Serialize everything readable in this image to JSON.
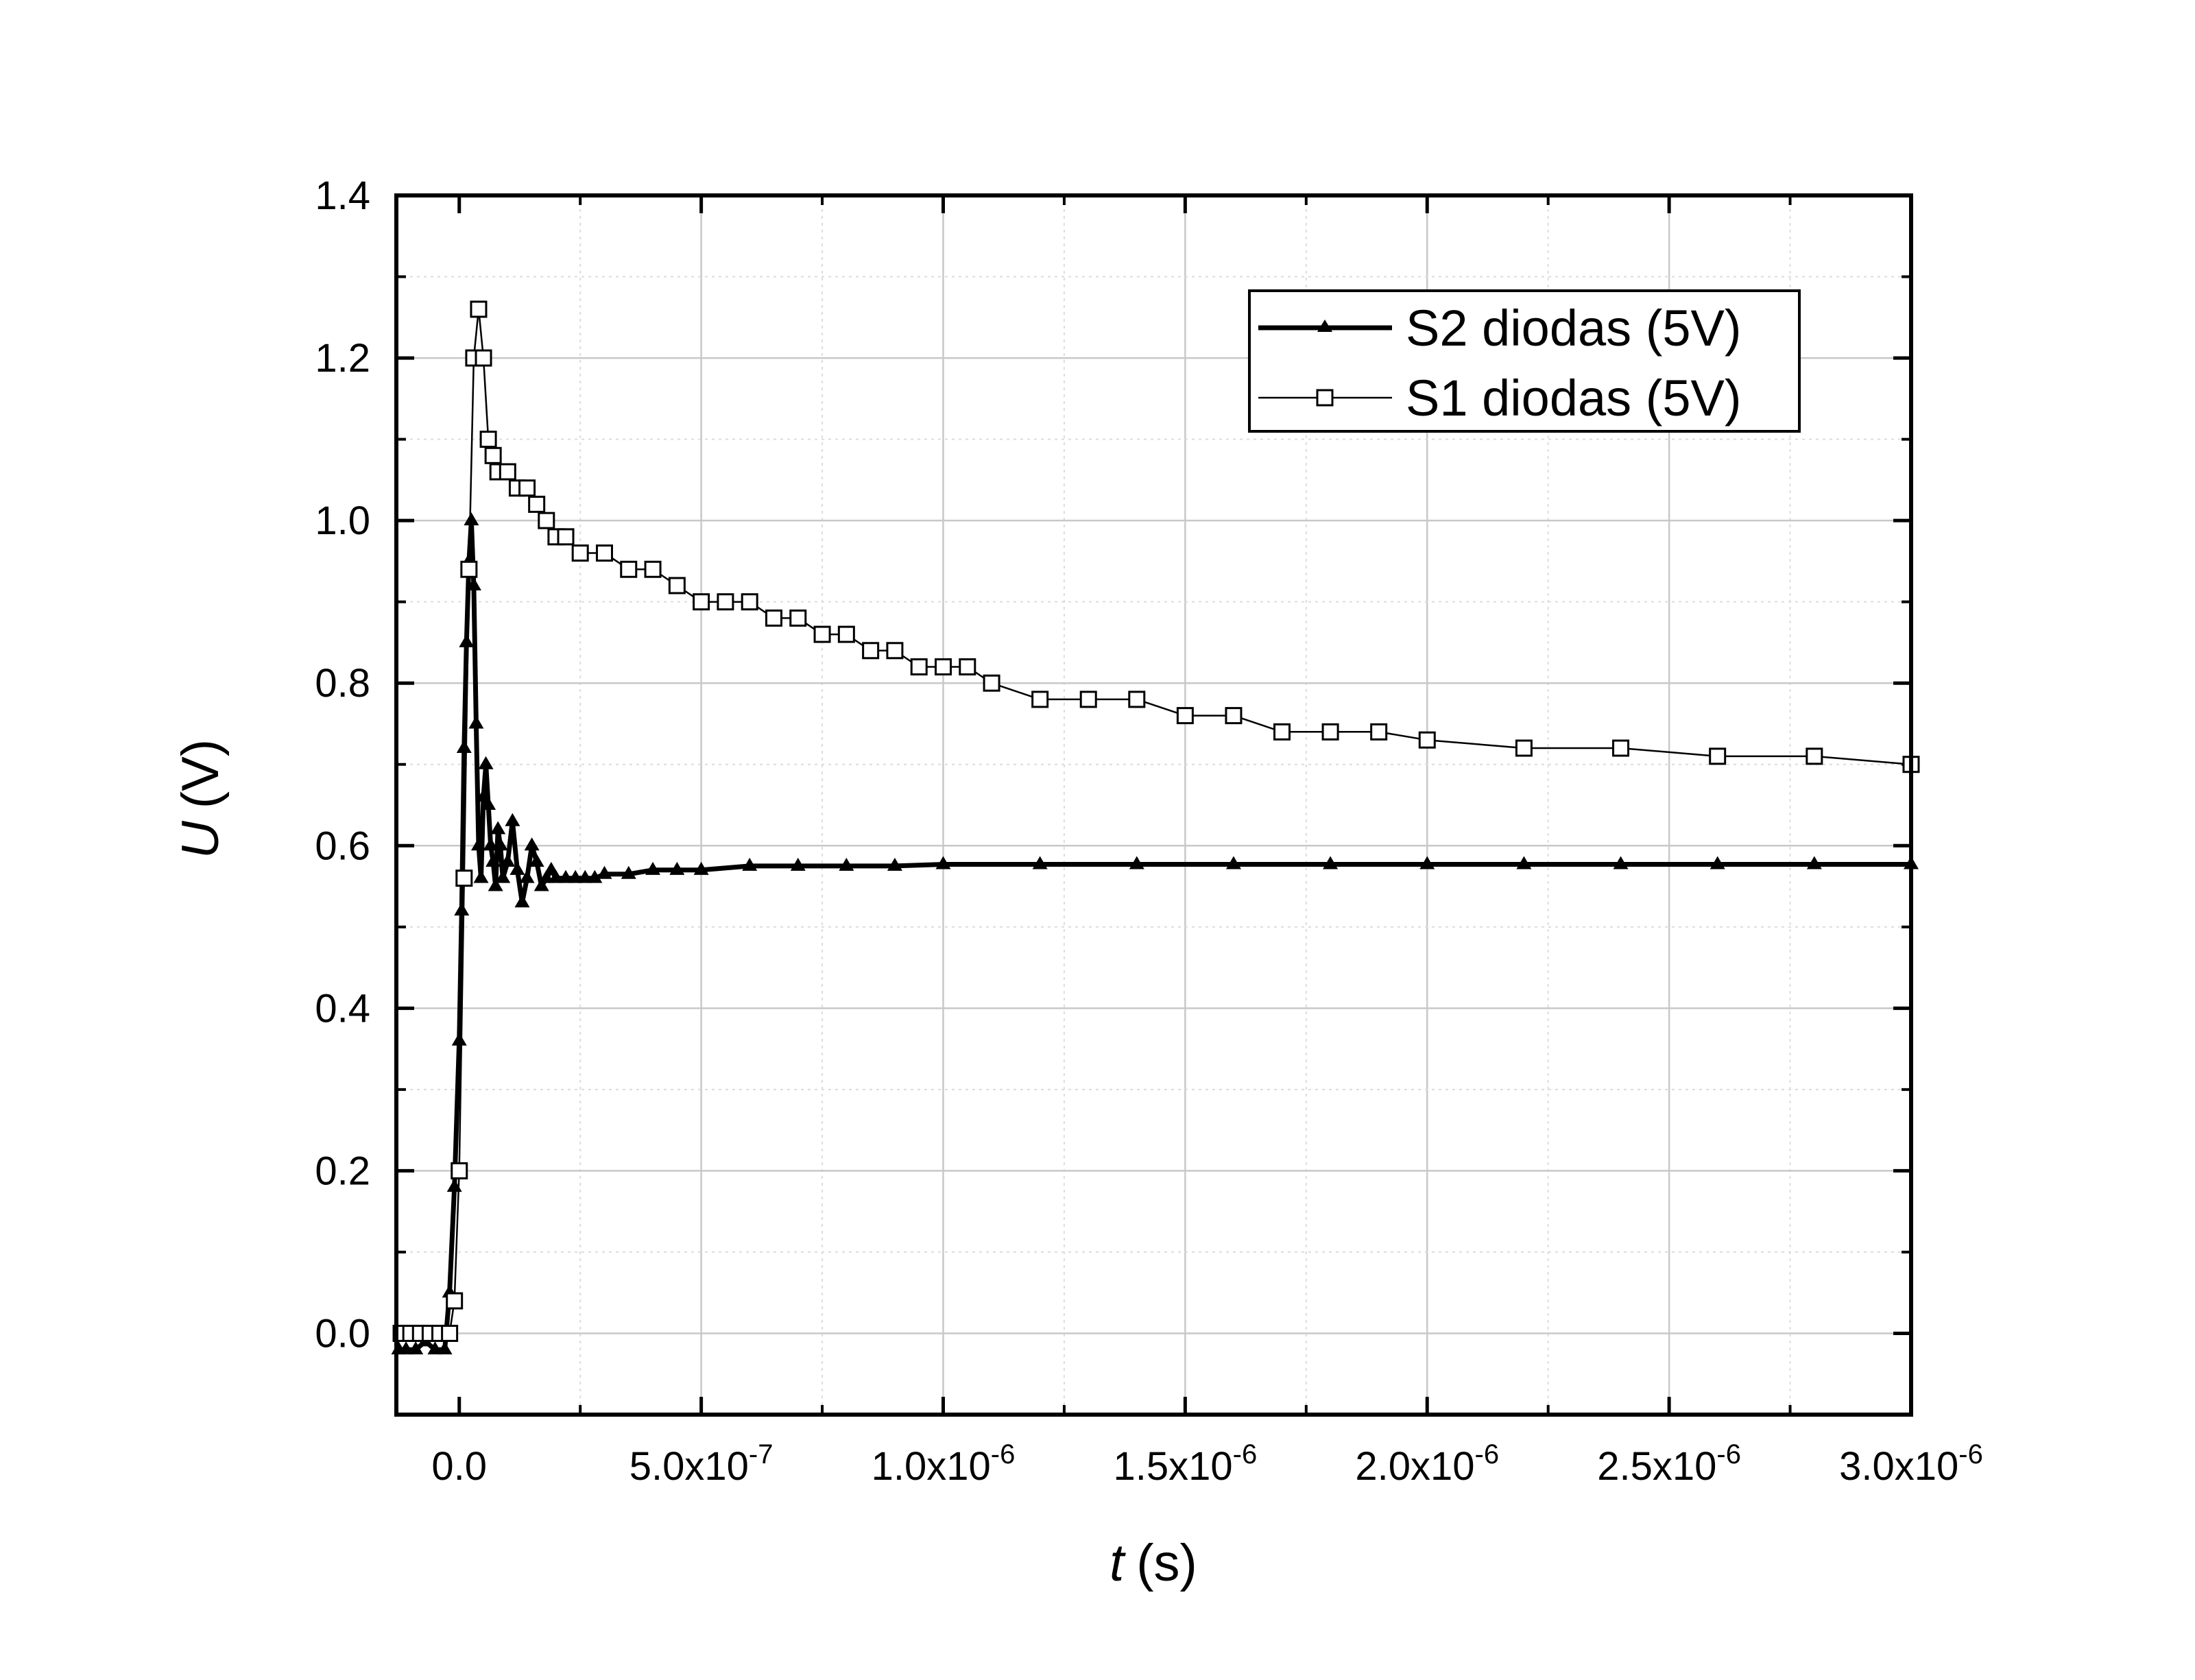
{
  "chart_data": {
    "type": "line",
    "title": "",
    "xlabel": {
      "symbol": "t",
      "unit": "(s)"
    },
    "ylabel": {
      "symbol": "U",
      "unit": "(V)"
    },
    "xlim": [
      -1.3e-07,
      3e-06
    ],
    "ylim": [
      -0.1,
      1.4
    ],
    "x_major_ticks": [
      0,
      5e-07,
      1e-06,
      1.5e-06,
      2e-06,
      2.5e-06,
      3e-06
    ],
    "x_tick_labels": [
      {
        "mantissa": "0.0",
        "exp": ""
      },
      {
        "mantissa": "5.0x10",
        "exp": "-7"
      },
      {
        "mantissa": "1.0x10",
        "exp": "-6"
      },
      {
        "mantissa": "1.5x10",
        "exp": "-6"
      },
      {
        "mantissa": "2.0x10",
        "exp": "-6"
      },
      {
        "mantissa": "2.5x10",
        "exp": "-6"
      },
      {
        "mantissa": "3.0x10",
        "exp": "-6"
      }
    ],
    "y_major_ticks": [
      0,
      0.2,
      0.4,
      0.6,
      0.8,
      1.0,
      1.2,
      1.4
    ],
    "y_tick_labels": [
      "0.0",
      "0.2",
      "0.4",
      "0.6",
      "0.8",
      "1.0",
      "1.2",
      "1.4"
    ],
    "grid": true,
    "legend_position": "top-right",
    "series": [
      {
        "name": "S2 diodas (5V)",
        "marker": "triangle-filled",
        "line": "thick",
        "x": [
          -1.25e-07,
          -1.1e-07,
          -9e-08,
          -7e-08,
          -5e-08,
          -3e-08,
          -2e-08,
          -1e-08,
          0,
          5e-09,
          1e-08,
          1.5e-08,
          2e-08,
          2.5e-08,
          3e-08,
          3.5e-08,
          4e-08,
          4.5e-08,
          5e-08,
          5.5e-08,
          6e-08,
          6.5e-08,
          7e-08,
          7.5e-08,
          8e-08,
          8.5e-08,
          9e-08,
          1e-07,
          1.1e-07,
          1.2e-07,
          1.3e-07,
          1.4e-07,
          1.5e-07,
          1.6e-07,
          1.7e-07,
          1.8e-07,
          1.9e-07,
          2e-07,
          2.2e-07,
          2.4e-07,
          2.6e-07,
          2.8e-07,
          3e-07,
          3.5e-07,
          4e-07,
          4.5e-07,
          5e-07,
          6e-07,
          7e-07,
          8e-07,
          9e-07,
          1e-06,
          1.2e-06,
          1.4e-06,
          1.6e-06,
          1.8e-06,
          2e-06,
          2.2e-06,
          2.4e-06,
          2.6e-06,
          2.8e-06,
          3e-06
        ],
        "y": [
          -0.02,
          -0.02,
          -0.02,
          -0.01,
          -0.02,
          -0.02,
          0.05,
          0.18,
          0.36,
          0.52,
          0.72,
          0.85,
          0.95,
          1.0,
          0.92,
          0.75,
          0.6,
          0.56,
          0.66,
          0.7,
          0.65,
          0.6,
          0.58,
          0.55,
          0.62,
          0.6,
          0.56,
          0.58,
          0.63,
          0.57,
          0.53,
          0.56,
          0.6,
          0.58,
          0.55,
          0.56,
          0.57,
          0.56,
          0.56,
          0.56,
          0.56,
          0.56,
          0.565,
          0.565,
          0.57,
          0.57,
          0.57,
          0.575,
          0.575,
          0.575,
          0.575,
          0.577,
          0.577,
          0.577,
          0.577,
          0.577,
          0.577,
          0.577,
          0.577,
          0.577,
          0.577,
          0.577
        ]
      },
      {
        "name": "S1 diodas (5V)",
        "marker": "square-open",
        "line": "thin",
        "x": [
          -1.2e-07,
          -1e-07,
          -8e-08,
          -6e-08,
          -4e-08,
          -2e-08,
          -1e-08,
          0,
          1e-08,
          2e-08,
          3e-08,
          4e-08,
          5e-08,
          6e-08,
          7e-08,
          8e-08,
          1e-07,
          1.2e-07,
          1.4e-07,
          1.6e-07,
          1.8e-07,
          2e-07,
          2.2e-07,
          2.5e-07,
          3e-07,
          3.5e-07,
          4e-07,
          4.5e-07,
          5e-07,
          5.5e-07,
          6e-07,
          6.5e-07,
          7e-07,
          7.5e-07,
          8e-07,
          8.5e-07,
          9e-07,
          9.5e-07,
          1e-06,
          1.05e-06,
          1.1e-06,
          1.2e-06,
          1.3e-06,
          1.4e-06,
          1.5e-06,
          1.6e-06,
          1.7e-06,
          1.8e-06,
          1.9e-06,
          2e-06,
          2.2e-06,
          2.4e-06,
          2.6e-06,
          2.8e-06,
          3e-06
        ],
        "y": [
          0.0,
          0.0,
          0.0,
          0.0,
          0.0,
          0.0,
          0.04,
          0.2,
          0.56,
          0.94,
          1.2,
          1.26,
          1.2,
          1.1,
          1.08,
          1.06,
          1.06,
          1.04,
          1.04,
          1.02,
          1.0,
          0.98,
          0.98,
          0.96,
          0.96,
          0.94,
          0.94,
          0.92,
          0.9,
          0.9,
          0.9,
          0.88,
          0.88,
          0.86,
          0.86,
          0.84,
          0.84,
          0.82,
          0.82,
          0.82,
          0.8,
          0.78,
          0.78,
          0.78,
          0.76,
          0.76,
          0.74,
          0.74,
          0.74,
          0.73,
          0.72,
          0.72,
          0.71,
          0.71,
          0.7
        ]
      }
    ]
  }
}
